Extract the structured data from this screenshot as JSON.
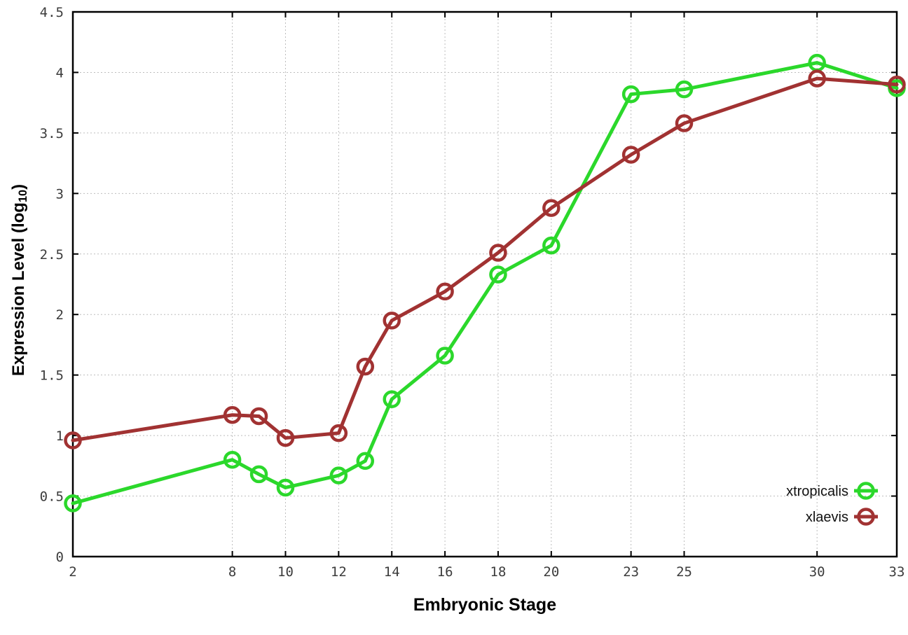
{
  "chart_data": {
    "type": "line",
    "title": "",
    "xlabel": "Embryonic Stage",
    "ylabel": "Expression Level (log10)",
    "ylabel_parts": {
      "prefix": "Expression Level (log",
      "subscript": "10",
      "suffix": ")"
    },
    "x": [
      2,
      8,
      9,
      10,
      12,
      13,
      14,
      16,
      18,
      20,
      23,
      25,
      30,
      33
    ],
    "xtick_values": [
      2,
      8,
      10,
      12,
      14,
      16,
      18,
      20,
      23,
      25,
      30,
      33
    ],
    "xtick_labels": [
      "2",
      "8",
      "10",
      "12",
      "14",
      "16",
      "18",
      "20",
      "23",
      "25",
      "30",
      "33"
    ],
    "ytick_values": [
      0,
      0.5,
      1,
      1.5,
      2,
      2.5,
      3,
      3.5,
      4,
      4.5
    ],
    "ytick_labels": [
      "0",
      "0.5",
      "1",
      "1.5",
      "2",
      "2.5",
      "3",
      "3.5",
      "4",
      "4.5"
    ],
    "xlim": [
      2,
      33
    ],
    "ylim": [
      0,
      4.5
    ],
    "grid": "dotted",
    "legend_position": "inside-bottom-right",
    "series": [
      {
        "name": "xtropicalis",
        "color": "#2bd82b",
        "values": [
          0.44,
          0.8,
          0.68,
          0.57,
          0.67,
          0.79,
          1.3,
          1.66,
          2.33,
          2.57,
          3.82,
          3.86,
          4.08,
          3.87
        ]
      },
      {
        "name": "xlaevis",
        "color": "#a13232",
        "values": [
          0.96,
          1.17,
          1.16,
          0.98,
          1.02,
          1.57,
          1.95,
          2.19,
          2.51,
          2.88,
          3.32,
          3.58,
          3.95,
          3.9
        ]
      }
    ]
  },
  "colors": {
    "grid": "#bdbdbd",
    "axis": "#000000",
    "tick_text": "#3c3c3c",
    "background": "#ffffff"
  }
}
